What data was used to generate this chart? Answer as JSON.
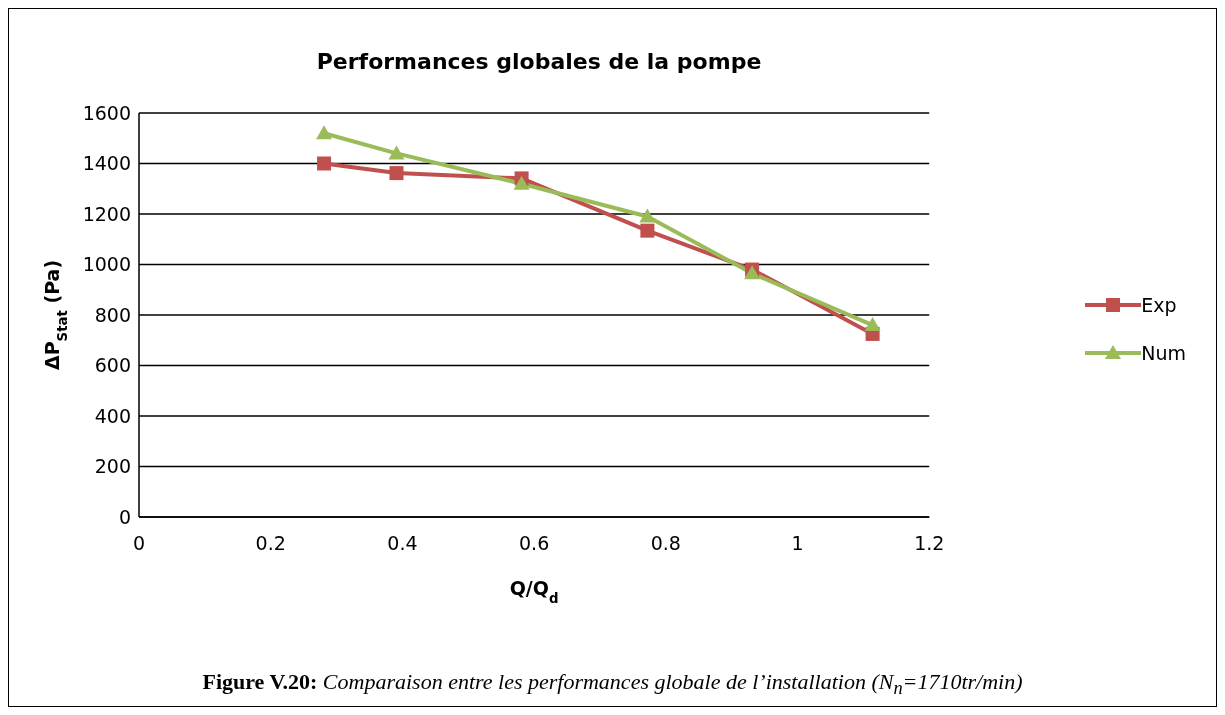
{
  "chart_data": {
    "type": "line",
    "title": "Performances globales de la pompe",
    "xlabel": "Q/Q$_{d}$",
    "ylabel": "ΔP$_{Stat}$ (Pa)",
    "x": [
      0.281,
      0.391,
      0.581,
      0.772,
      0.931,
      1.114
    ],
    "series": [
      {
        "name": "Exp",
        "color": "#c0504d",
        "marker": "square",
        "values": [
          1400,
          1362,
          1341,
          1134,
          980,
          725
        ]
      },
      {
        "name": "Num",
        "color": "#9bbb59",
        "marker": "triangle",
        "values": [
          1520,
          1440,
          1320,
          1190,
          965,
          760
        ]
      }
    ],
    "xlim": [
      0,
      1.2
    ],
    "xticks": [
      0,
      0.2,
      0.4,
      0.6,
      0.8,
      1,
      1.2
    ],
    "ylim": [
      0,
      1600
    ],
    "yticks": [
      0,
      200,
      400,
      600,
      800,
      1000,
      1200,
      1400,
      1600
    ],
    "grid": "y",
    "legend": "right",
    "line_style": "solid",
    "annotations": [
      "Figure V.20: Comparaison entre les performances globale de l’installation (N$_{n}$=1710tr/min)"
    ]
  }
}
